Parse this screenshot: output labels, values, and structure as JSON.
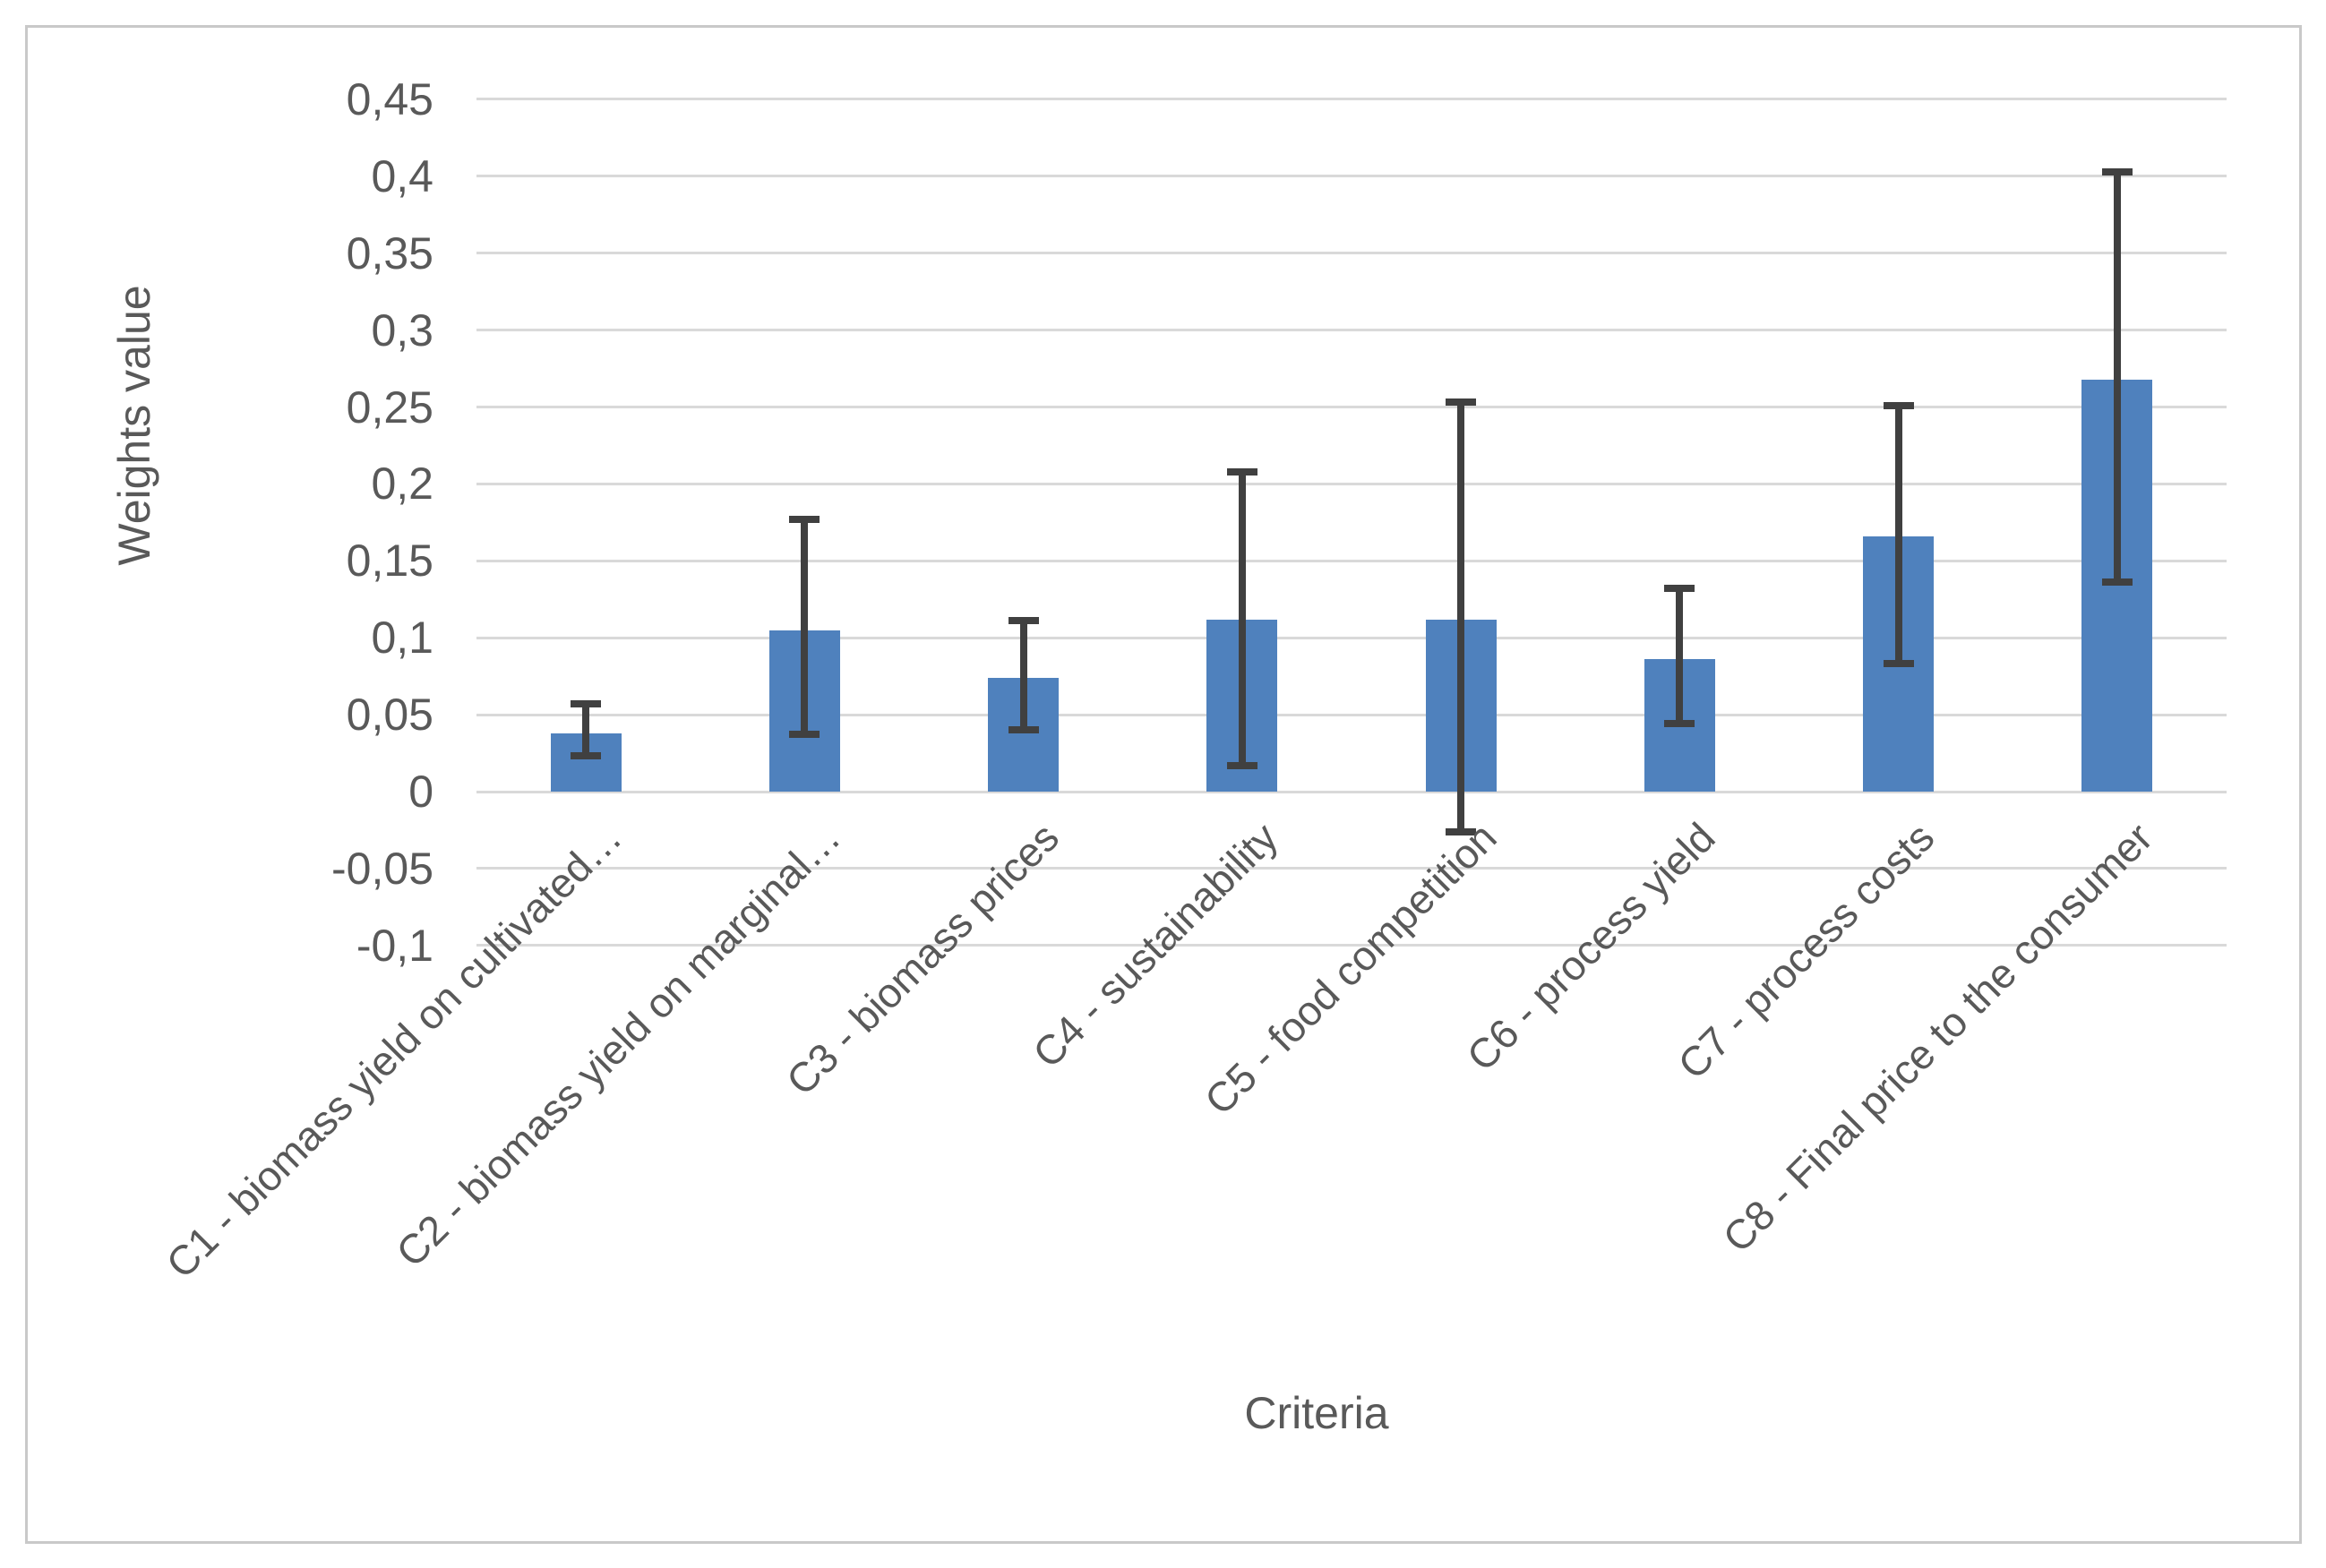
{
  "chart_data": {
    "type": "bar",
    "title": "",
    "xlabel": "Criteria",
    "ylabel": "Weights value",
    "categories": [
      "C1 - biomass yield on cultivated…",
      "C2 - biomass yield on marginal…",
      "C3 - biomass prices",
      "C4 - sustainability",
      "C5 - food competition",
      "C6 - process yield",
      "C7 - process costs",
      "C8 - Final price to the consumer"
    ],
    "values": [
      0.038,
      0.105,
      0.074,
      0.112,
      0.112,
      0.086,
      0.166,
      0.268
    ],
    "error_low": [
      0.023,
      0.037,
      0.04,
      0.017,
      -0.026,
      0.044,
      0.083,
      0.136
    ],
    "error_high": [
      0.057,
      0.177,
      0.111,
      0.208,
      0.253,
      0.132,
      0.251,
      0.403
    ],
    "ylim": [
      -0.1,
      0.45
    ],
    "ytick_step": 0.05,
    "ytick_labels": [
      "0,45",
      "0,4",
      "0,35",
      "0,3",
      "0,25",
      "0,2",
      "0,15",
      "0,1",
      "0,05",
      "0",
      "-0,05",
      "-0,1"
    ],
    "ytick_values": [
      0.45,
      0.4,
      0.35,
      0.3,
      0.25,
      0.2,
      0.15,
      0.1,
      0.05,
      0,
      -0.05,
      -0.1
    ],
    "decimal_separator": ",",
    "grid": true,
    "legend": false,
    "bar_color": "#4f81bd",
    "error_bar_color": "#404040",
    "gridline_color": "#d9d9d9",
    "text_color": "#595959",
    "frame_border_color": "#c9c9c9"
  }
}
